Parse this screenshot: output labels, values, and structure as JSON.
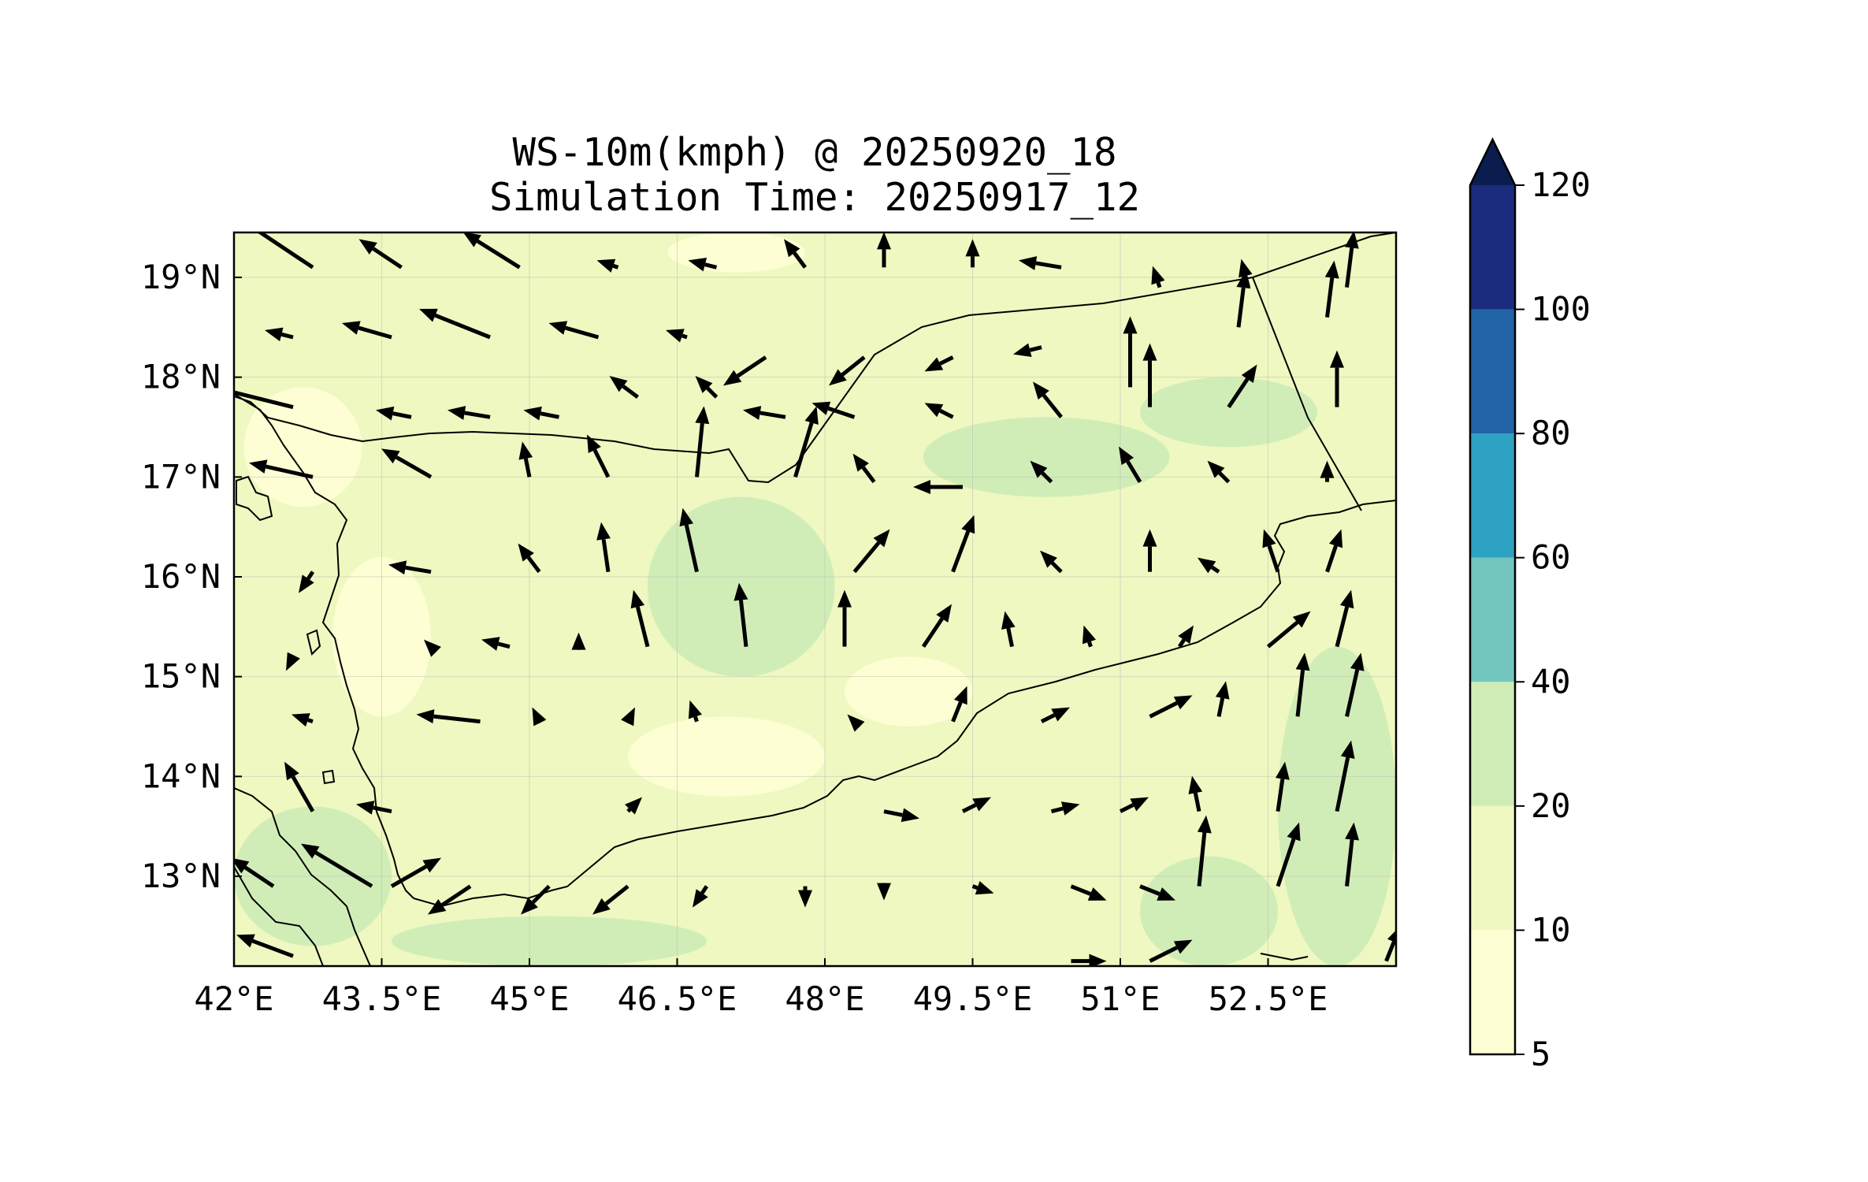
{
  "title_line1": "WS-10m(kmph) @ 20250920_18",
  "title_line2": "Simulation Time: 20250917_12",
  "chart_data": {
    "type": "heatmap",
    "variable": "10 m wind speed (kmph) with wind vectors",
    "title": "WS-10m(kmph) @ 20250920_18",
    "subtitle": "Simulation Time: 20250917_12",
    "xlabel": "",
    "ylabel": "",
    "xlim": [
      42.0,
      53.8
    ],
    "ylim": [
      12.1,
      19.45
    ],
    "x_ticks": [
      "42°E",
      "43.5°E",
      "45°E",
      "46.5°E",
      "48°E",
      "49.5°E",
      "51°E",
      "52.5°E"
    ],
    "x_tick_values": [
      42.0,
      43.5,
      45.0,
      46.5,
      48.0,
      49.5,
      51.0,
      52.5
    ],
    "y_ticks": [
      "13°N",
      "14°N",
      "15°N",
      "16°N",
      "17°N",
      "18°N",
      "19°N"
    ],
    "y_tick_values": [
      13,
      14,
      15,
      16,
      17,
      18,
      19
    ],
    "grid": true,
    "colorbar": {
      "levels": [
        5,
        10,
        20,
        40,
        60,
        80,
        100,
        120
      ],
      "tick_labels": [
        "5",
        "10",
        "20",
        "40",
        "60",
        "80",
        "100",
        "120"
      ],
      "colors": [
        "#fdfed4",
        "#eef8c0",
        "#cfecb6",
        "#72c6bd",
        "#2ea2c2",
        "#2264a8",
        "#1b2c7e"
      ],
      "extend": "max",
      "extend_color": "#0b1d4e"
    },
    "speed_regions": [
      {
        "level": "20-40",
        "lon": [
          46.2,
          48.1
        ],
        "lat": [
          15.0,
          16.8
        ]
      },
      {
        "level": "20-40",
        "lon": [
          52.6,
          53.8
        ],
        "lat": [
          12.1,
          15.3
        ]
      },
      {
        "level": "20-40",
        "lon": [
          51.2,
          52.6
        ],
        "lat": [
          12.1,
          13.2
        ]
      },
      {
        "level": "20-40",
        "lon": [
          42.0,
          43.6
        ],
        "lat": [
          12.3,
          13.7
        ]
      },
      {
        "level": "20-40",
        "lon": [
          43.6,
          46.8
        ],
        "lat": [
          12.1,
          12.6
        ]
      },
      {
        "level": "20-40",
        "lon": [
          49.0,
          51.5
        ],
        "lat": [
          16.8,
          17.6
        ]
      },
      {
        "level": "20-40",
        "lon": [
          51.2,
          53.0
        ],
        "lat": [
          17.3,
          18.0
        ]
      },
      {
        "level": "5-10",
        "lon": [
          42.1,
          43.3
        ],
        "lat": [
          16.7,
          17.9
        ]
      },
      {
        "level": "5-10",
        "lon": [
          43.0,
          44.0
        ],
        "lat": [
          14.6,
          16.2
        ]
      },
      {
        "level": "5-10",
        "lon": [
          46.0,
          48.0
        ],
        "lat": [
          13.8,
          14.6
        ]
      },
      {
        "level": "5-10",
        "lon": [
          48.2,
          49.5
        ],
        "lat": [
          14.5,
          15.2
        ]
      },
      {
        "level": "5-10",
        "lon": [
          46.4,
          47.8
        ],
        "lat": [
          19.05,
          19.45
        ]
      }
    ],
    "coastline_and_borders": "Yemen, Saudi Arabia and Oman borders; Red Sea and Gulf of Aden coastlines",
    "vectors_note": "wind vectors: lon, lat, u, v (kmph components)",
    "vectors": [
      [
        42.8,
        19.1,
        -12,
        8
      ],
      [
        43.7,
        19.1,
        -6,
        4
      ],
      [
        44.9,
        19.1,
        -8,
        5
      ],
      [
        45.9,
        19.1,
        -3,
        1
      ],
      [
        46.9,
        19.1,
        -4,
        1
      ],
      [
        47.8,
        19.1,
        -3,
        4
      ],
      [
        48.6,
        19.1,
        0,
        5
      ],
      [
        49.5,
        19.1,
        0,
        4
      ],
      [
        50.4,
        19.1,
        -6,
        1
      ],
      [
        51.4,
        18.9,
        -1,
        3
      ],
      [
        52.3,
        18.9,
        -1,
        4
      ],
      [
        53.3,
        18.9,
        1,
        8
      ],
      [
        42.6,
        18.4,
        -4,
        1
      ],
      [
        43.6,
        18.4,
        -7,
        2
      ],
      [
        44.6,
        18.4,
        -10,
        4
      ],
      [
        45.7,
        18.4,
        -7,
        2
      ],
      [
        46.6,
        18.4,
        -3,
        1
      ],
      [
        47.4,
        18.2,
        -6,
        -4
      ],
      [
        48.4,
        18.2,
        -5,
        -4
      ],
      [
        49.3,
        18.2,
        -4,
        -2
      ],
      [
        50.2,
        18.3,
        -4,
        -1
      ],
      [
        51.1,
        17.9,
        0,
        10
      ],
      [
        52.2,
        18.5,
        1,
        8
      ],
      [
        53.1,
        18.6,
        1,
        8
      ],
      [
        42.6,
        17.7,
        -12,
        3
      ],
      [
        43.8,
        17.6,
        -5,
        1
      ],
      [
        44.6,
        17.6,
        -6,
        1
      ],
      [
        45.3,
        17.6,
        -5,
        1
      ],
      [
        46.1,
        17.8,
        -4,
        3
      ],
      [
        46.9,
        17.8,
        -3,
        3
      ],
      [
        47.6,
        17.6,
        -6,
        1
      ],
      [
        48.3,
        17.6,
        -6,
        2
      ],
      [
        49.3,
        17.6,
        -4,
        2
      ],
      [
        50.4,
        17.6,
        -4,
        5
      ],
      [
        51.3,
        17.7,
        0,
        9
      ],
      [
        52.1,
        17.7,
        4,
        6
      ],
      [
        53.2,
        17.7,
        0,
        8
      ],
      [
        42.8,
        17.0,
        -9,
        2
      ],
      [
        44.0,
        17.0,
        -7,
        4
      ],
      [
        45.0,
        17.0,
        -1,
        5
      ],
      [
        45.8,
        17.0,
        -3,
        6
      ],
      [
        46.7,
        17.0,
        1,
        10
      ],
      [
        47.7,
        17.0,
        3,
        10
      ],
      [
        48.5,
        16.95,
        -3,
        4
      ],
      [
        49.4,
        16.9,
        -7,
        0
      ],
      [
        50.3,
        16.95,
        -3,
        3
      ],
      [
        51.2,
        16.95,
        -3,
        5
      ],
      [
        52.1,
        16.95,
        -3,
        3
      ],
      [
        53.1,
        16.95,
        0,
        3
      ],
      [
        42.8,
        16.05,
        -2,
        -3
      ],
      [
        44.0,
        16.05,
        -6,
        1
      ],
      [
        45.1,
        16.05,
        -3,
        4
      ],
      [
        45.8,
        16.05,
        -1,
        7
      ],
      [
        46.7,
        16.05,
        -2,
        9
      ],
      [
        48.3,
        16.05,
        5,
        6
      ],
      [
        49.3,
        16.05,
        3,
        8
      ],
      [
        50.4,
        16.05,
        -3,
        3
      ],
      [
        51.3,
        16.05,
        0,
        6
      ],
      [
        52.0,
        16.05,
        -3,
        2
      ],
      [
        52.6,
        16.05,
        -2,
        6
      ],
      [
        53.1,
        16.05,
        2,
        6
      ],
      [
        42.6,
        15.2,
        -1,
        -2
      ],
      [
        44.0,
        15.3,
        -1,
        1
      ],
      [
        44.8,
        15.3,
        -4,
        1
      ],
      [
        45.5,
        15.3,
        0,
        2
      ],
      [
        46.2,
        15.3,
        -2,
        8
      ],
      [
        47.2,
        15.3,
        -1,
        9
      ],
      [
        48.2,
        15.3,
        0,
        8
      ],
      [
        49.0,
        15.3,
        4,
        6
      ],
      [
        49.9,
        15.3,
        -1,
        5
      ],
      [
        50.7,
        15.3,
        -1,
        3
      ],
      [
        51.6,
        15.3,
        2,
        3
      ],
      [
        52.5,
        15.3,
        6,
        5
      ],
      [
        53.2,
        15.3,
        2,
        8
      ],
      [
        42.8,
        14.55,
        -3,
        1
      ],
      [
        44.5,
        14.55,
        -9,
        1
      ],
      [
        45.1,
        14.55,
        -1,
        2
      ],
      [
        46.0,
        14.55,
        1,
        2
      ],
      [
        46.7,
        14.55,
        -1,
        3
      ],
      [
        47.5,
        14.55,
        0,
        0
      ],
      [
        48.3,
        14.55,
        -1,
        1
      ],
      [
        49.3,
        14.55,
        2,
        5
      ],
      [
        50.2,
        14.55,
        4,
        2
      ],
      [
        51.3,
        14.6,
        6,
        3
      ],
      [
        52.0,
        14.6,
        1,
        5
      ],
      [
        52.8,
        14.6,
        1,
        9
      ],
      [
        53.3,
        14.6,
        2,
        9
      ],
      [
        42.8,
        13.65,
        -4,
        7
      ],
      [
        43.6,
        13.65,
        -5,
        1
      ],
      [
        44.0,
        13.65,
        0,
        0
      ],
      [
        45.0,
        13.65,
        0,
        0
      ],
      [
        46.0,
        13.65,
        2,
        2
      ],
      [
        46.8,
        13.65,
        0,
        0
      ],
      [
        47.7,
        13.65,
        0,
        0
      ],
      [
        48.6,
        13.65,
        5,
        -1
      ],
      [
        49.4,
        13.65,
        4,
        2
      ],
      [
        50.3,
        13.65,
        4,
        1
      ],
      [
        51.0,
        13.65,
        4,
        2
      ],
      [
        51.8,
        13.65,
        -1,
        5
      ],
      [
        52.6,
        13.65,
        1,
        7
      ],
      [
        53.2,
        13.65,
        2,
        10
      ],
      [
        42.4,
        12.9,
        -6,
        4
      ],
      [
        43.4,
        12.9,
        -10,
        6
      ],
      [
        43.6,
        12.9,
        7,
        4
      ],
      [
        44.4,
        12.9,
        -6,
        -4
      ],
      [
        45.2,
        12.9,
        -4,
        -4
      ],
      [
        46.0,
        12.9,
        -5,
        -4
      ],
      [
        46.8,
        12.9,
        -2,
        -3
      ],
      [
        47.8,
        12.9,
        0,
        -3
      ],
      [
        48.6,
        12.9,
        0,
        -2
      ],
      [
        49.5,
        12.9,
        3,
        -1
      ],
      [
        50.5,
        12.9,
        5,
        -2
      ],
      [
        51.2,
        12.9,
        5,
        -2
      ],
      [
        51.8,
        12.9,
        1,
        10
      ],
      [
        52.6,
        12.9,
        3,
        9
      ],
      [
        53.3,
        12.9,
        1,
        9
      ],
      [
        42.6,
        12.2,
        -8,
        3
      ],
      [
        50.5,
        12.15,
        5,
        0
      ],
      [
        51.3,
        12.15,
        6,
        3
      ],
      [
        53.7,
        12.15,
        2,
        5
      ]
    ]
  }
}
